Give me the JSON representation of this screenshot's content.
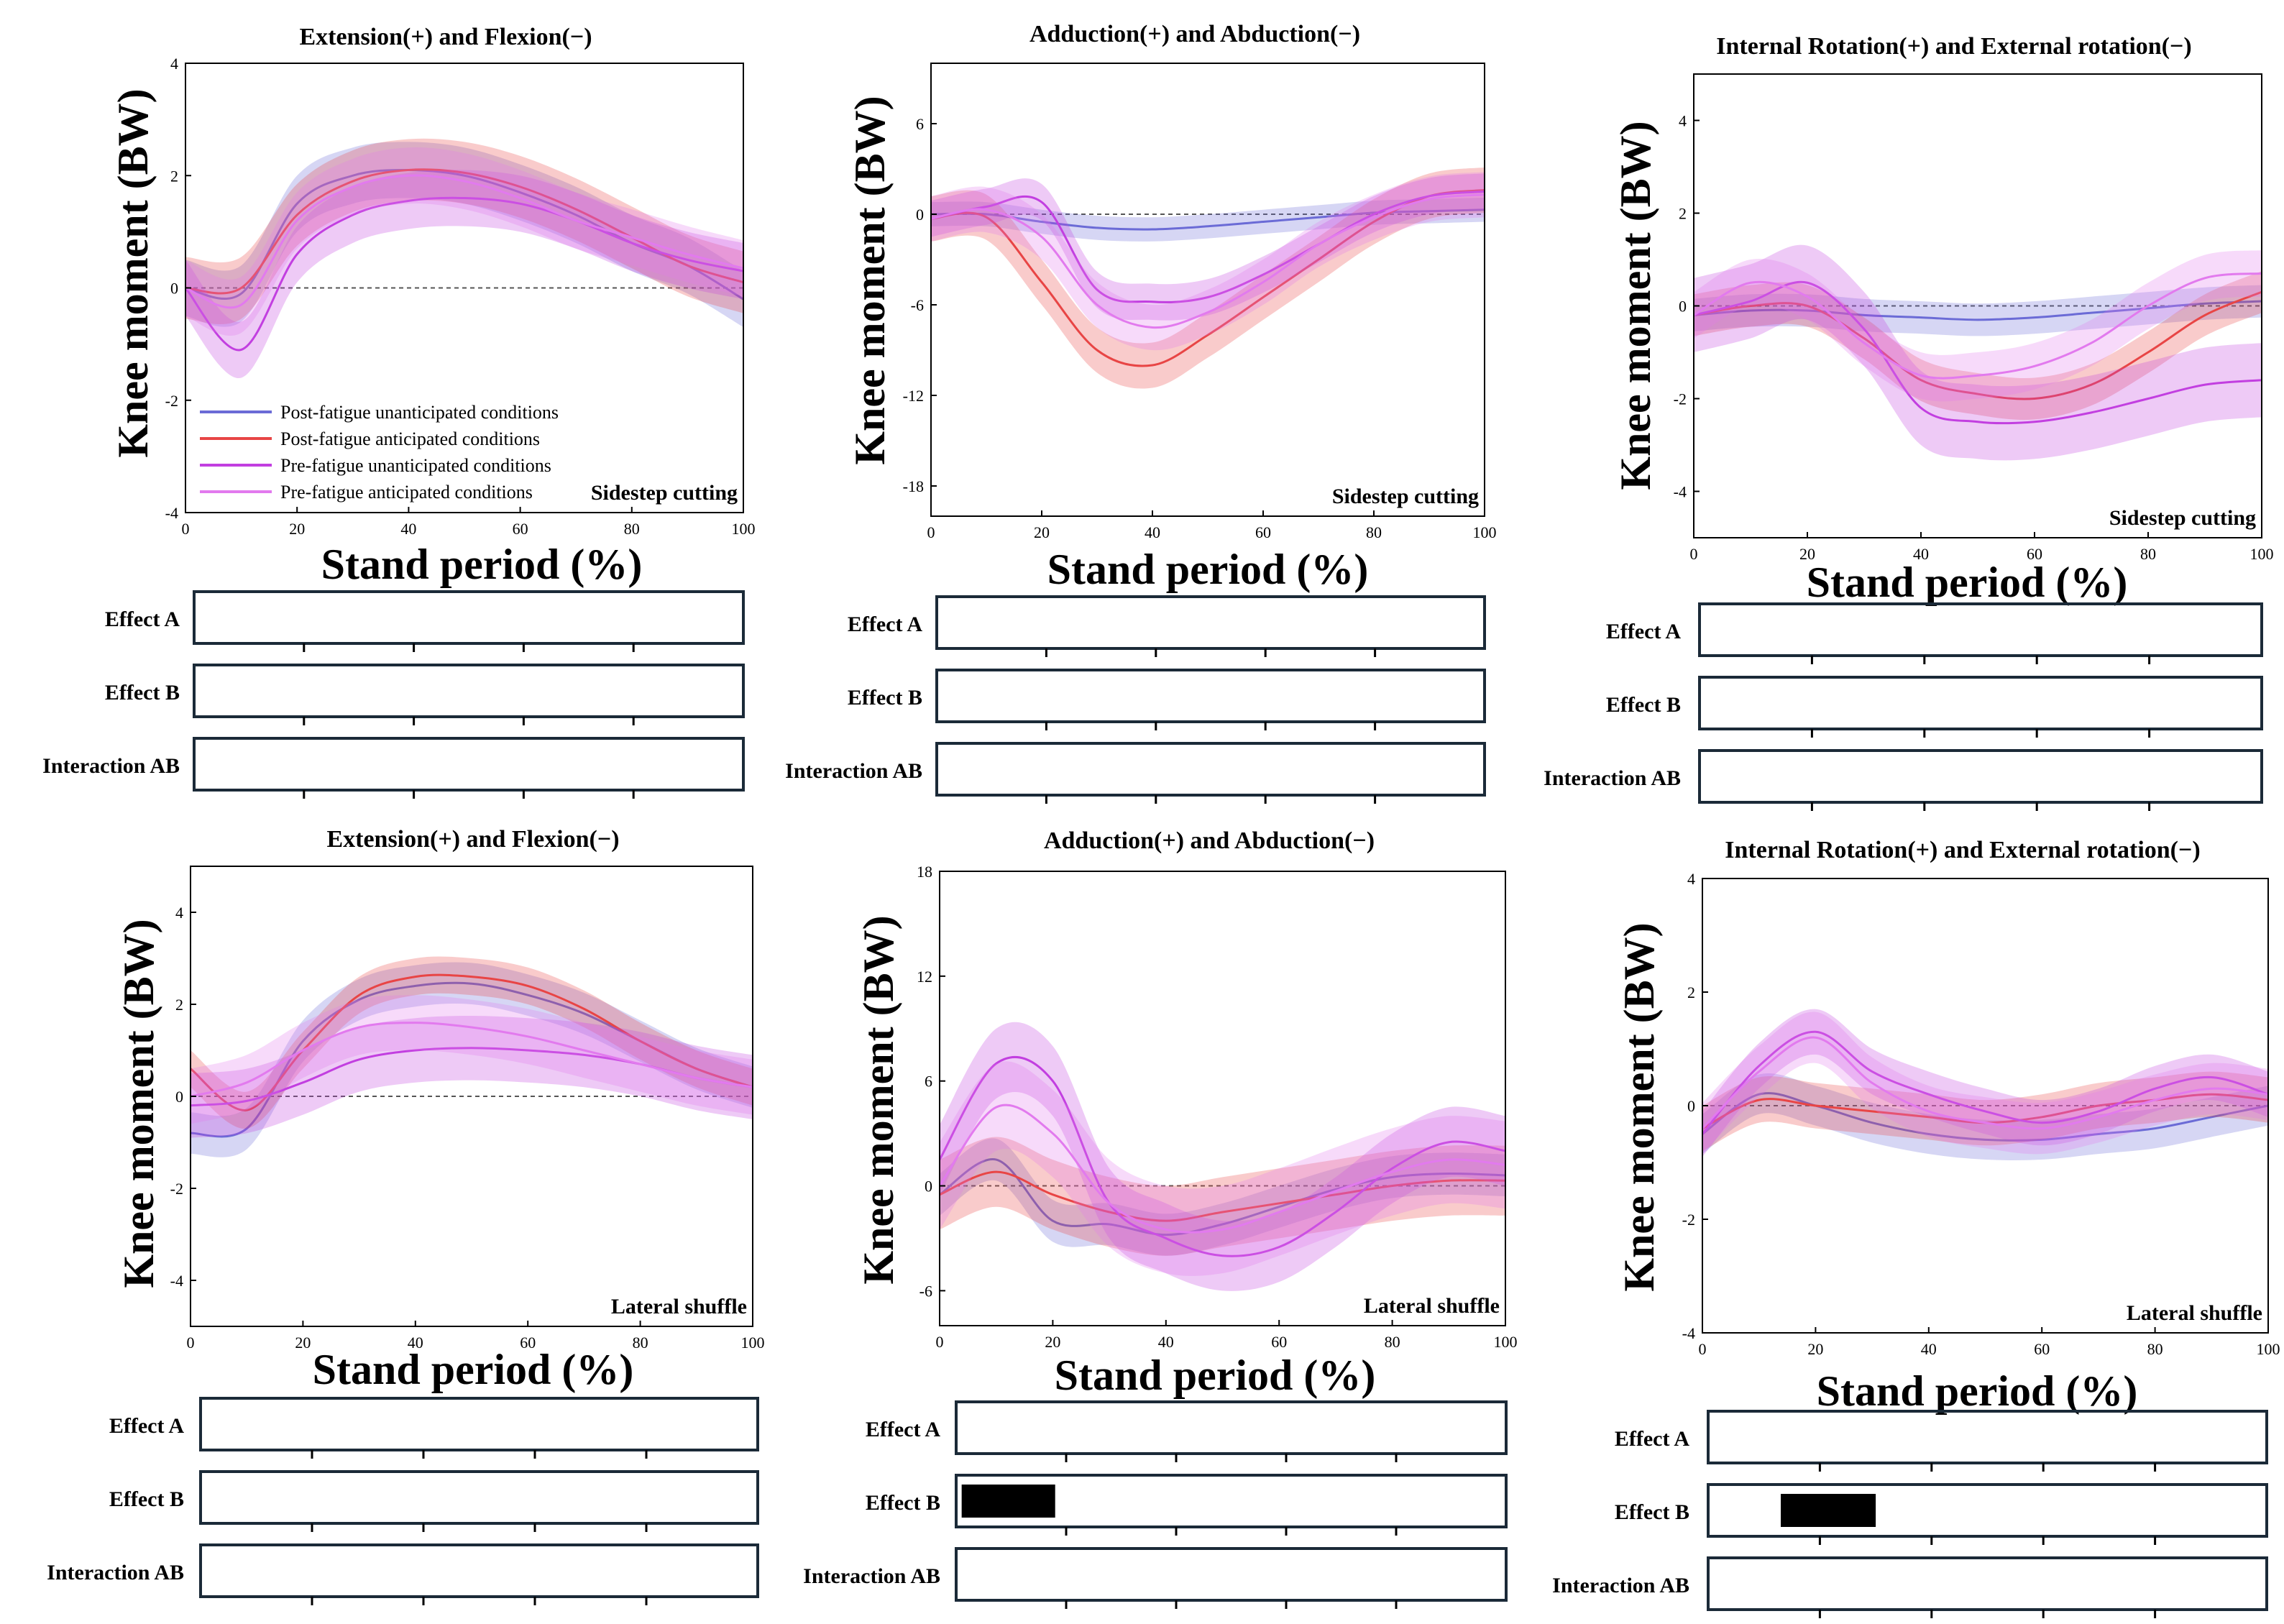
{
  "labels": {
    "ylabel": "Knee moment (BW)",
    "xlabel": "Stand period (%)",
    "effects": [
      "Effect A",
      "Effect B",
      "Interaction AB"
    ]
  },
  "legend": {
    "entries": [
      {
        "label": "Post-fatigue unanticipated conditions",
        "color": "#6b6bd6"
      },
      {
        "label": "Post-fatigue anticipated conditions",
        "color": "#e84545"
      },
      {
        "label": "Pre-fatigue unanticipated conditions",
        "color": "#c23fe0"
      },
      {
        "label": "Pre-fatigue anticipated conditions",
        "color": "#e27aee"
      }
    ]
  },
  "colors": {
    "post_unant": "#6b6bd6",
    "post_ant": "#e84545",
    "pre_unant": "#c23fe0",
    "pre_ant": "#e27aee",
    "axis": "#000000",
    "box": "#1b2a38",
    "zero": "#555555"
  },
  "chart_data": [
    {
      "type": "line",
      "title": "Extension(+) and Flexion(−)",
      "task": "Sidestep cutting",
      "xlabel": "Stand period (%)",
      "ylabel": "Knee moment (BW)",
      "xlim": [
        0,
        100
      ],
      "ylim": [
        -4,
        4
      ],
      "xticks": [
        0,
        20,
        40,
        60,
        80,
        100
      ],
      "yticks": [
        -4,
        -2,
        0,
        2,
        4
      ],
      "has_legend": true,
      "x": [
        0,
        10,
        20,
        30,
        40,
        50,
        60,
        70,
        80,
        90,
        100
      ],
      "series": [
        {
          "name": "Post-fatigue unanticipated conditions",
          "values": [
            0,
            -0.1,
            1.5,
            2.0,
            2.1,
            2.0,
            1.7,
            1.3,
            0.8,
            0.4,
            -0.2
          ],
          "band": 0.5
        },
        {
          "name": "Post-fatigue anticipated conditions",
          "values": [
            0,
            0.0,
            1.3,
            1.9,
            2.1,
            2.05,
            1.8,
            1.4,
            0.9,
            0.4,
            0.1
          ],
          "band": 0.55
        },
        {
          "name": "Pre-fatigue unanticipated conditions",
          "values": [
            0,
            -1.1,
            0.6,
            1.3,
            1.55,
            1.6,
            1.5,
            1.2,
            0.8,
            0.5,
            0.3
          ],
          "band": 0.5
        },
        {
          "name": "Pre-fatigue anticipated conditions",
          "values": [
            0,
            -0.3,
            1.2,
            1.8,
            2.0,
            1.9,
            1.6,
            1.2,
            0.9,
            0.6,
            0.35
          ],
          "band": 0.5
        }
      ],
      "effects": {
        "Effect A": [],
        "Effect B": [],
        "Interaction AB": []
      }
    },
    {
      "type": "line",
      "title": "Adduction(+) and Abduction(−)",
      "task": "Sidestep cutting",
      "xlabel": "Stand period (%)",
      "ylabel": "Knee moment (BW)",
      "xlim": [
        0,
        100
      ],
      "ylim": [
        -20,
        10
      ],
      "xticks": [
        0,
        20,
        40,
        60,
        80,
        100
      ],
      "yticks": [
        -18,
        -12,
        -6,
        0,
        6
      ],
      "has_legend": false,
      "x": [
        0,
        10,
        20,
        30,
        40,
        50,
        60,
        70,
        80,
        90,
        100
      ],
      "series": [
        {
          "name": "Post-fatigue unanticipated conditions",
          "values": [
            0,
            0.0,
            -0.5,
            -0.9,
            -1.0,
            -0.8,
            -0.5,
            -0.2,
            0.1,
            0.2,
            0.3
          ],
          "band": 0.8
        },
        {
          "name": "Post-fatigue anticipated conditions",
          "values": [
            -0.3,
            -0.2,
            -4.5,
            -9.0,
            -10.0,
            -8.0,
            -5.5,
            -3.0,
            -0.5,
            1.2,
            1.6
          ],
          "band": 1.5
        },
        {
          "name": "Pre-fatigue unanticipated conditions",
          "values": [
            -0.3,
            0.5,
            0.8,
            -5.0,
            -5.8,
            -5.5,
            -4.0,
            -2.0,
            0.0,
            1.2,
            1.5
          ],
          "band": 1.2
        },
        {
          "name": "Pre-fatigue anticipated conditions",
          "values": [
            -0.3,
            0.3,
            -1.5,
            -6.0,
            -7.5,
            -6.5,
            -4.5,
            -2.0,
            -0.2,
            1.0,
            1.3
          ],
          "band": 1.5
        }
      ],
      "effects": {
        "Effect A": [],
        "Effect B": [],
        "Interaction AB": []
      }
    },
    {
      "type": "line",
      "title": "Internal Rotation(+) and External rotation(−)",
      "task": "Sidestep cutting",
      "xlabel": "Stand period (%)",
      "ylabel": "Knee moment (BW)",
      "xlim": [
        0,
        100
      ],
      "ylim": [
        -5,
        5
      ],
      "xticks": [
        0,
        20,
        40,
        60,
        80,
        100
      ],
      "yticks": [
        -4,
        -2,
        0,
        2,
        4
      ],
      "has_legend": false,
      "x": [
        0,
        10,
        20,
        30,
        40,
        50,
        60,
        70,
        80,
        90,
        100
      ],
      "series": [
        {
          "name": "Post-fatigue unanticipated conditions",
          "values": [
            -0.2,
            -0.1,
            -0.1,
            -0.2,
            -0.25,
            -0.3,
            -0.25,
            -0.15,
            -0.05,
            0.05,
            0.1
          ],
          "band": 0.35
        },
        {
          "name": "Post-fatigue anticipated conditions",
          "values": [
            -0.2,
            0.0,
            0.0,
            -0.7,
            -1.6,
            -1.9,
            -2.0,
            -1.7,
            -1.0,
            -0.2,
            0.3
          ],
          "band": 0.45
        },
        {
          "name": "Pre-fatigue unanticipated conditions",
          "values": [
            -0.2,
            0.1,
            0.5,
            -0.5,
            -2.2,
            -2.5,
            -2.5,
            -2.3,
            -2.0,
            -1.7,
            -1.6
          ],
          "band": 0.8
        },
        {
          "name": "Pre-fatigue anticipated conditions",
          "values": [
            -0.2,
            0.5,
            0.2,
            -0.8,
            -1.5,
            -1.5,
            -1.3,
            -0.8,
            0.0,
            0.6,
            0.7
          ],
          "band": 0.5
        }
      ],
      "effects": {
        "Effect A": [],
        "Effect B": [],
        "Interaction AB": []
      }
    },
    {
      "type": "line",
      "title": "Extension(+) and Flexion(−)",
      "task": "Lateral shuffle",
      "xlabel": "Stand period (%)",
      "ylabel": "Knee moment (BW)",
      "xlim": [
        0,
        100
      ],
      "ylim": [
        -5,
        5
      ],
      "xticks": [
        0,
        20,
        40,
        60,
        80,
        100
      ],
      "yticks": [
        -4,
        -2,
        0,
        2,
        4
      ],
      "has_legend": false,
      "x": [
        0,
        10,
        20,
        30,
        40,
        50,
        60,
        70,
        80,
        90,
        100
      ],
      "series": [
        {
          "name": "Post-fatigue unanticipated conditions",
          "values": [
            -0.8,
            -0.7,
            1.2,
            2.1,
            2.4,
            2.45,
            2.2,
            1.8,
            1.2,
            0.6,
            0.2
          ],
          "band": 0.45
        },
        {
          "name": "Post-fatigue anticipated conditions",
          "values": [
            0.6,
            -0.3,
            1.0,
            2.2,
            2.6,
            2.6,
            2.4,
            1.9,
            1.2,
            0.6,
            0.2
          ],
          "band": 0.4
        },
        {
          "name": "Pre-fatigue unanticipated conditions",
          "values": [
            -0.2,
            -0.1,
            0.3,
            0.8,
            1.0,
            1.05,
            1.0,
            0.9,
            0.7,
            0.4,
            0.2
          ],
          "band": 0.7
        },
        {
          "name": "Pre-fatigue anticipated conditions",
          "values": [
            0.0,
            0.3,
            1.0,
            1.5,
            1.6,
            1.5,
            1.3,
            1.0,
            0.7,
            0.4,
            0.2
          ],
          "band": 0.6
        }
      ],
      "effects": {
        "Effect A": [],
        "Effect B": [],
        "Interaction AB": []
      }
    },
    {
      "type": "line",
      "title": "Adduction(+) and Abduction(−)",
      "task": "Lateral shuffle",
      "xlabel": "Stand period (%)",
      "ylabel": "Knee moment (BW)",
      "xlim": [
        0,
        100
      ],
      "ylim": [
        -8,
        18
      ],
      "xticks": [
        0,
        20,
        40,
        60,
        80,
        100
      ],
      "yticks": [
        -6,
        0,
        6,
        12,
        18
      ],
      "has_legend": false,
      "x": [
        0,
        10,
        20,
        30,
        40,
        50,
        60,
        70,
        80,
        90,
        100
      ],
      "series": [
        {
          "name": "Post-fatigue unanticipated conditions",
          "values": [
            -0.5,
            1.5,
            -2.0,
            -2.2,
            -2.8,
            -2.2,
            -1.2,
            -0.2,
            0.5,
            0.7,
            0.6
          ],
          "band": 1.2
        },
        {
          "name": "Post-fatigue anticipated conditions",
          "values": [
            -0.5,
            0.8,
            -0.5,
            -1.5,
            -2.0,
            -1.5,
            -1.0,
            -0.5,
            0.0,
            0.3,
            0.3
          ],
          "band": 2.0
        },
        {
          "name": "Pre-fatigue unanticipated conditions",
          "values": [
            1.5,
            7.0,
            6.0,
            -1.0,
            -3.0,
            -4.0,
            -3.5,
            -1.5,
            1.0,
            2.5,
            2.0
          ],
          "band": 2.0
        },
        {
          "name": "Pre-fatigue anticipated conditions",
          "values": [
            0.0,
            4.5,
            3.0,
            -1.0,
            -2.5,
            -2.5,
            -1.5,
            -0.3,
            0.8,
            1.5,
            1.2
          ],
          "band": 2.5
        }
      ],
      "effects": {
        "Effect A": [],
        "Effect B": [
          [
            1,
            18
          ]
        ],
        "Interaction AB": []
      }
    },
    {
      "type": "line",
      "title": "Internal Rotation(+) and External rotation(−)",
      "task": "Lateral shuffle",
      "xlabel": "Stand period (%)",
      "ylabel": "Knee moment (BW)",
      "xlim": [
        0,
        100
      ],
      "ylim": [
        -4,
        4
      ],
      "xticks": [
        0,
        20,
        40,
        60,
        80,
        100
      ],
      "yticks": [
        -4,
        -2,
        0,
        2,
        4
      ],
      "has_legend": false,
      "x": [
        0,
        10,
        20,
        30,
        40,
        50,
        60,
        70,
        80,
        90,
        100
      ],
      "series": [
        {
          "name": "Post-fatigue unanticipated conditions",
          "values": [
            -0.5,
            0.2,
            0.0,
            -0.3,
            -0.5,
            -0.6,
            -0.6,
            -0.5,
            -0.4,
            -0.2,
            0.0
          ],
          "band": 0.35
        },
        {
          "name": "Post-fatigue anticipated conditions",
          "values": [
            -0.4,
            0.1,
            0.0,
            -0.1,
            -0.2,
            -0.3,
            -0.2,
            0.0,
            0.1,
            0.2,
            0.1
          ],
          "band": 0.4
        },
        {
          "name": "Pre-fatigue unanticipated conditions",
          "values": [
            -0.5,
            0.7,
            1.3,
            0.6,
            0.2,
            -0.1,
            -0.3,
            -0.1,
            0.3,
            0.5,
            0.2
          ],
          "band": 0.4
        },
        {
          "name": "Pre-fatigue anticipated conditions",
          "values": [
            -0.4,
            0.6,
            1.2,
            0.4,
            -0.1,
            -0.3,
            -0.4,
            -0.2,
            0.1,
            0.3,
            0.2
          ],
          "band": 0.45
        }
      ],
      "effects": {
        "Effect A": [],
        "Effect B": [
          [
            13,
            30
          ]
        ],
        "Interaction AB": []
      }
    }
  ]
}
